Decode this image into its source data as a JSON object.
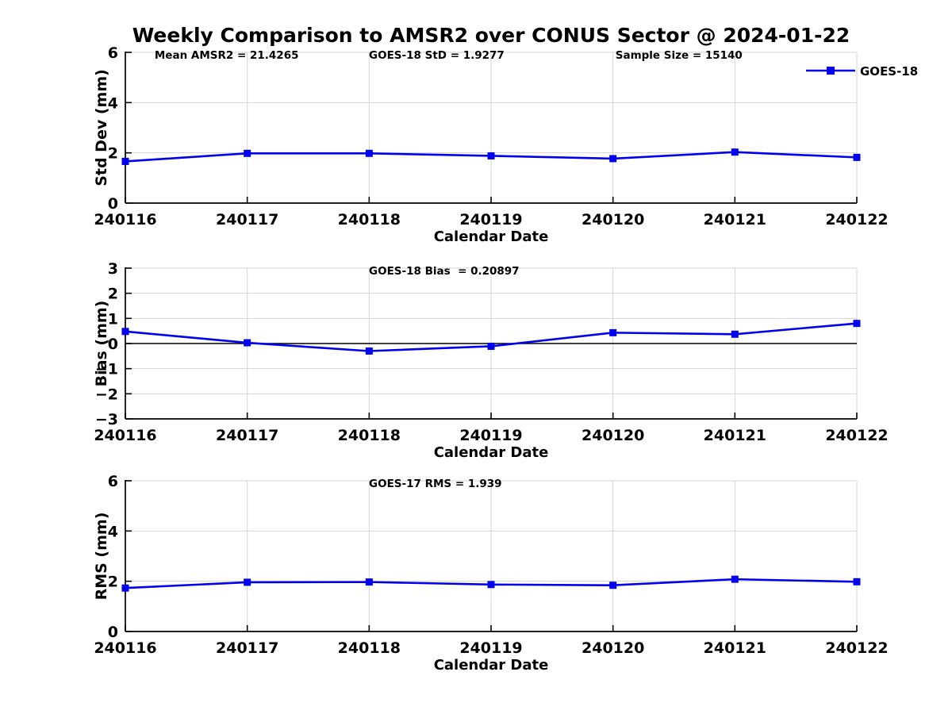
{
  "title": "Weekly Comparison to AMSR2 over CONUS Sector @ 2024-01-22",
  "colors": {
    "line": "#0000EE",
    "grid": "#D4D4D4",
    "axis": "#000000",
    "text": "#000000",
    "background": "#FFFFFF"
  },
  "chart_data": [
    {
      "type": "line",
      "id": "std-dev",
      "ylabel": "Std Dev (mm)",
      "xlabel": "Calendar Date",
      "categories": [
        "240116",
        "240117",
        "240118",
        "240119",
        "240120",
        "240121",
        "240122"
      ],
      "series": [
        {
          "name": "GOES-18",
          "values": [
            1.66,
            1.98,
            1.98,
            1.88,
            1.77,
            2.03,
            1.82
          ]
        }
      ],
      "ylim": [
        0,
        6
      ],
      "yticks": [
        0,
        2,
        4,
        6
      ],
      "grid": true,
      "legend_label": "GOES-18",
      "legend_position": "top-right",
      "annotations": [
        {
          "text": "Mean AMSR2 = 21.4265",
          "xfrac": 0.04
        },
        {
          "text": "GOES-18 StD = 1.9277",
          "xfrac": 0.333
        },
        {
          "text": "Sample Size = 15140",
          "xfrac": 0.67
        }
      ]
    },
    {
      "type": "line",
      "id": "bias",
      "ylabel": "Bias (mm)",
      "xlabel": "Calendar Date",
      "categories": [
        "240116",
        "240117",
        "240118",
        "240119",
        "240120",
        "240121",
        "240122"
      ],
      "series": [
        {
          "name": "GOES-18",
          "values": [
            0.48,
            0.03,
            -0.3,
            -0.11,
            0.43,
            0.37,
            0.8
          ]
        }
      ],
      "ylim": [
        -3,
        3
      ],
      "yticks": [
        -3,
        -2,
        -1,
        0,
        1,
        2,
        3
      ],
      "grid": true,
      "zero_line": true,
      "annotations": [
        {
          "text": "GOES-18 Bias  = 0.20897",
          "xfrac": 0.333
        }
      ]
    },
    {
      "type": "line",
      "id": "rms",
      "ylabel": "RMS (mm)",
      "xlabel": "Calendar Date",
      "categories": [
        "240116",
        "240117",
        "240118",
        "240119",
        "240120",
        "240121",
        "240122"
      ],
      "series": [
        {
          "name": "GOES-18",
          "values": [
            1.73,
            1.96,
            1.97,
            1.87,
            1.84,
            2.08,
            1.98
          ]
        }
      ],
      "ylim": [
        0,
        6
      ],
      "yticks": [
        0,
        2,
        4,
        6
      ],
      "grid": true,
      "annotations": [
        {
          "text": "GOES-17 RMS = 1.939",
          "xfrac": 0.333
        }
      ]
    }
  ]
}
